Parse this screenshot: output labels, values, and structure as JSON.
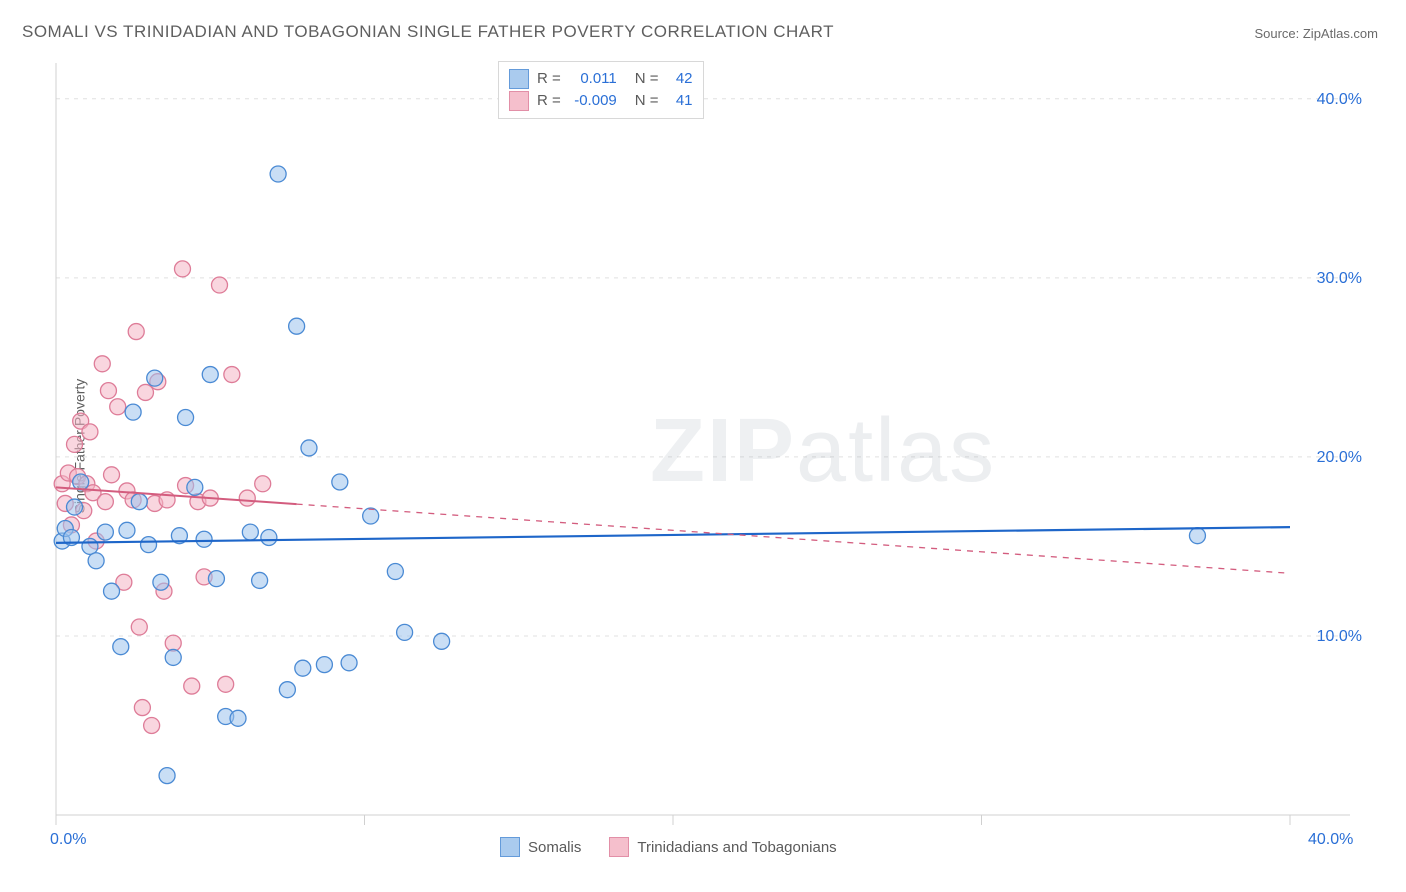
{
  "title": "SOMALI VS TRINIDADIAN AND TOBAGONIAN SINGLE FATHER POVERTY CORRELATION CHART",
  "source_prefix": "Source: ",
  "source_name": "ZipAtlas.com",
  "ylabel": "Single Father Poverty",
  "watermark": {
    "zip": "ZIP",
    "rest": "atlas"
  },
  "chart": {
    "type": "scatter",
    "xlim": [
      0,
      40
    ],
    "ylim": [
      0,
      42
    ],
    "x_tick_values": [
      0,
      10,
      20,
      30,
      40
    ],
    "x_tick_labels": [
      "0.0%",
      "",
      "",
      "",
      "40.0%"
    ],
    "y_tick_values": [
      10,
      20,
      30,
      40
    ],
    "y_tick_labels": [
      "10.0%",
      "20.0%",
      "30.0%",
      "40.0%"
    ],
    "grid_color": "#e0e0e0",
    "background_color": "#ffffff",
    "axis_color": "#d0d0d0",
    "tick_label_color": "#2a6fd6",
    "marker_radius": 8,
    "marker_stroke_width": 1.3,
    "series": [
      {
        "name": "Somalis",
        "fill": "#9cc3ec",
        "fill_opacity": 0.55,
        "stroke": "#4a8ad4",
        "points": [
          [
            0.2,
            15.3
          ],
          [
            0.3,
            16.0
          ],
          [
            0.5,
            15.5
          ],
          [
            0.6,
            17.2
          ],
          [
            0.8,
            18.6
          ],
          [
            1.1,
            15.0
          ],
          [
            1.3,
            14.2
          ],
          [
            1.6,
            15.8
          ],
          [
            1.8,
            12.5
          ],
          [
            2.1,
            9.4
          ],
          [
            2.3,
            15.9
          ],
          [
            2.5,
            22.5
          ],
          [
            2.7,
            17.5
          ],
          [
            3.0,
            15.1
          ],
          [
            3.2,
            24.4
          ],
          [
            3.4,
            13.0
          ],
          [
            3.6,
            2.2
          ],
          [
            3.8,
            8.8
          ],
          [
            4.0,
            15.6
          ],
          [
            4.2,
            22.2
          ],
          [
            4.5,
            18.3
          ],
          [
            4.8,
            15.4
          ],
          [
            5.0,
            24.6
          ],
          [
            5.2,
            13.2
          ],
          [
            5.5,
            5.5
          ],
          [
            5.9,
            5.4
          ],
          [
            6.3,
            15.8
          ],
          [
            6.6,
            13.1
          ],
          [
            6.9,
            15.5
          ],
          [
            7.2,
            35.8
          ],
          [
            7.5,
            7.0
          ],
          [
            7.8,
            27.3
          ],
          [
            8.0,
            8.2
          ],
          [
            8.2,
            20.5
          ],
          [
            8.7,
            8.4
          ],
          [
            9.2,
            18.6
          ],
          [
            9.5,
            8.5
          ],
          [
            10.2,
            16.7
          ],
          [
            11.0,
            13.6
          ],
          [
            11.3,
            10.2
          ],
          [
            12.5,
            9.7
          ],
          [
            37.0,
            15.6
          ]
        ],
        "regression": {
          "slope": 0.022,
          "intercept": 15.2,
          "xmax_solid": 40,
          "color": "#1e66c9",
          "width": 2.2
        },
        "r": "0.011",
        "n": "42"
      },
      {
        "name": "Trinidadians and Tobagonians",
        "fill": "#f4b4c4",
        "fill_opacity": 0.55,
        "stroke": "#de7c98",
        "points": [
          [
            0.2,
            18.5
          ],
          [
            0.3,
            17.4
          ],
          [
            0.4,
            19.1
          ],
          [
            0.5,
            16.2
          ],
          [
            0.6,
            20.7
          ],
          [
            0.7,
            18.9
          ],
          [
            0.8,
            22.0
          ],
          [
            0.9,
            17.0
          ],
          [
            1.0,
            18.5
          ],
          [
            1.1,
            21.4
          ],
          [
            1.2,
            18.0
          ],
          [
            1.3,
            15.3
          ],
          [
            1.5,
            25.2
          ],
          [
            1.6,
            17.5
          ],
          [
            1.7,
            23.7
          ],
          [
            1.8,
            19.0
          ],
          [
            2.0,
            22.8
          ],
          [
            2.2,
            13.0
          ],
          [
            2.3,
            18.1
          ],
          [
            2.5,
            17.6
          ],
          [
            2.6,
            27.0
          ],
          [
            2.7,
            10.5
          ],
          [
            2.8,
            6.0
          ],
          [
            2.9,
            23.6
          ],
          [
            3.1,
            5.0
          ],
          [
            3.2,
            17.4
          ],
          [
            3.3,
            24.2
          ],
          [
            3.5,
            12.5
          ],
          [
            3.6,
            17.6
          ],
          [
            3.8,
            9.6
          ],
          [
            4.1,
            30.5
          ],
          [
            4.2,
            18.4
          ],
          [
            4.4,
            7.2
          ],
          [
            4.6,
            17.5
          ],
          [
            4.8,
            13.3
          ],
          [
            5.0,
            17.7
          ],
          [
            5.3,
            29.6
          ],
          [
            5.5,
            7.3
          ],
          [
            5.7,
            24.6
          ],
          [
            6.2,
            17.7
          ],
          [
            6.7,
            18.5
          ]
        ],
        "regression": {
          "slope": -0.12,
          "intercept": 18.3,
          "xmax_solid": 7.8,
          "color": "#d35c7e",
          "width": 2.0
        },
        "r": "-0.009",
        "n": "41"
      }
    ]
  },
  "stat_box": {
    "r_label": "R =",
    "n_label": "N ="
  },
  "legend": {
    "items": [
      {
        "label": "Somalis",
        "fill": "#9cc3ec",
        "stroke": "#4a8ad4"
      },
      {
        "label": "Trinidadians and Tobagonians",
        "fill": "#f4b4c4",
        "stroke": "#de7c98"
      }
    ]
  }
}
